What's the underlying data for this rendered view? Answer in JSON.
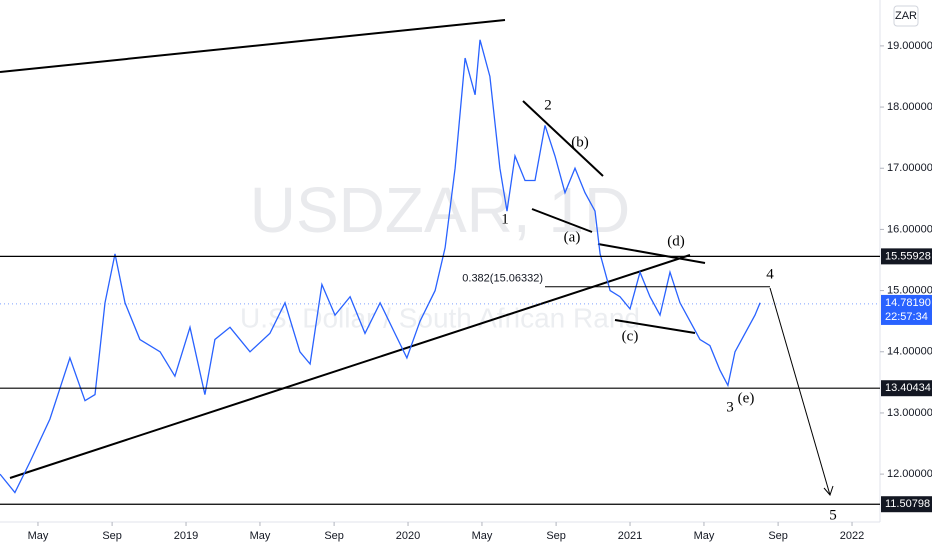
{
  "chart_data": {
    "type": "line",
    "watermark": "USDZAR, 1D",
    "watermark_subtitle": "U.S. Dollar / South African Rand",
    "currency": "ZAR",
    "color": "#2962ff",
    "x": [
      2018.162,
      2018.229,
      2018.297,
      2018.387,
      2018.477,
      2018.545,
      2018.59,
      2018.635,
      2018.68,
      2018.725,
      2018.792,
      2018.883,
      2018.95,
      2019.018,
      2019.085,
      2019.13,
      2019.198,
      2019.288,
      2019.378,
      2019.446,
      2019.513,
      2019.559,
      2019.612,
      2019.671,
      2019.739,
      2019.806,
      2019.874,
      2019.941,
      2019.995,
      2020.054,
      2020.122,
      2020.167,
      2020.212,
      2020.257,
      2020.302,
      2020.324,
      2020.369,
      2020.414,
      2020.446,
      2020.482,
      2020.527,
      2020.572,
      2020.617,
      2020.662,
      2020.707,
      2020.752,
      2020.797,
      2020.842,
      2020.865,
      2020.91,
      2020.955,
      2021.0,
      2021.045,
      2021.09,
      2021.135,
      2021.18,
      2021.225,
      2021.27,
      2021.315,
      2021.36,
      2021.405,
      2021.441,
      2021.473,
      2021.518,
      2021.563,
      2021.586
    ],
    "values": [
      12.0,
      11.7,
      12.2,
      12.9,
      13.9,
      13.2,
      13.3,
      14.8,
      15.6,
      14.8,
      14.2,
      14.0,
      13.6,
      14.4,
      13.3,
      14.2,
      14.4,
      14.0,
      14.3,
      14.8,
      14.0,
      13.8,
      15.1,
      14.6,
      14.9,
      14.3,
      14.8,
      14.3,
      13.9,
      14.5,
      15.0,
      15.7,
      17.0,
      18.8,
      18.2,
      19.1,
      18.5,
      17.0,
      16.3,
      17.2,
      16.8,
      16.8,
      17.7,
      17.2,
      16.6,
      17.0,
      16.6,
      16.3,
      15.6,
      15.0,
      14.9,
      14.7,
      15.3,
      14.9,
      14.6,
      15.3,
      14.8,
      14.5,
      14.2,
      14.1,
      13.7,
      13.45,
      14.0,
      14.3,
      14.6,
      14.8
    ],
    "xlim": [
      2018.162,
      2022.126
    ],
    "xticks": [
      {
        "value": 2018.333,
        "label": "May"
      },
      {
        "value": 2018.667,
        "label": "Sep"
      },
      {
        "value": 2019.0,
        "label": "2019"
      },
      {
        "value": 2019.333,
        "label": "May"
      },
      {
        "value": 2019.667,
        "label": "Sep"
      },
      {
        "value": 2020.0,
        "label": "2020"
      },
      {
        "value": 2020.333,
        "label": "May"
      },
      {
        "value": 2020.667,
        "label": "Sep"
      },
      {
        "value": 2021.0,
        "label": "2021"
      },
      {
        "value": 2021.333,
        "label": "May"
      },
      {
        "value": 2021.667,
        "label": "Sep"
      },
      {
        "value": 2022.0,
        "label": "2022"
      }
    ],
    "ylim": [
      11.25,
      19.75
    ],
    "yticks": [
      {
        "value": 12,
        "label": "12.00000"
      },
      {
        "value": 13,
        "label": "13.00000"
      },
      {
        "value": 14,
        "label": "14.00000"
      },
      {
        "value": 15,
        "label": "15.00000"
      },
      {
        "value": 16,
        "label": "16.00000"
      },
      {
        "value": 17,
        "label": "17.00000"
      },
      {
        "value": 18,
        "label": "18.00000"
      },
      {
        "value": 19,
        "label": "19.00000"
      }
    ],
    "levels": [
      15.55928,
      13.40434,
      11.50798
    ],
    "last_price": {
      "value": 14.7819,
      "label": "14.78190"
    },
    "countdown": "22:57:34",
    "fib": {
      "value": 15.06332,
      "label": "0.382(15.06332)"
    },
    "wave_labels": [
      "1",
      "2",
      "(b)",
      "(a)",
      "(d)",
      "(c)",
      "3",
      "(e)",
      "4",
      "5"
    ]
  }
}
